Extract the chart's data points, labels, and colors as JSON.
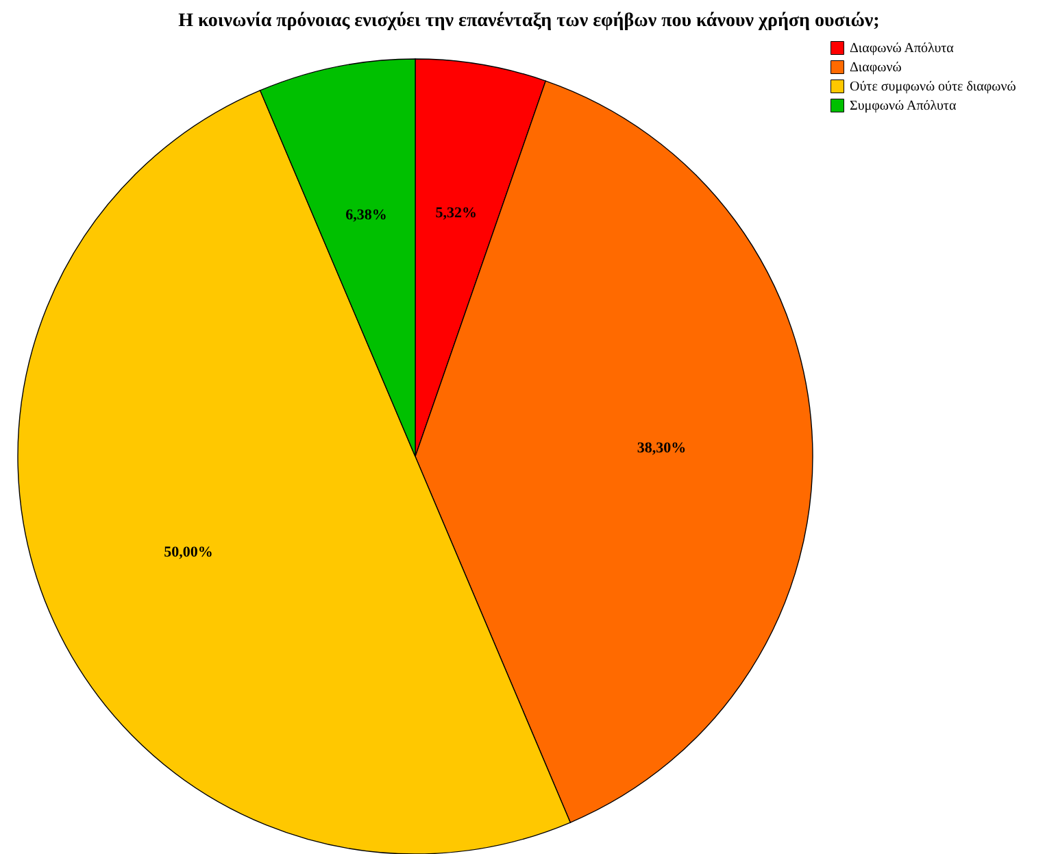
{
  "chart_data": {
    "type": "pie",
    "title": "Η κοινωνία πρόνοιας ενισχύει την επανένταξη των εφήβων που κάνουν χρήση ουσιών;",
    "categories": [
      "Διαφωνώ Απόλυτα",
      "Διαφωνώ",
      "Ούτε συμφωνώ ούτε διαφωνώ",
      "Συμφωνώ Απόλυτα"
    ],
    "values": [
      5.32,
      38.3,
      50.0,
      6.38
    ],
    "value_labels": [
      "5,32%",
      "38,30%",
      "50,00%",
      "6,38%"
    ],
    "colors": [
      "#ff0000",
      "#ff6a00",
      "#ffc800",
      "#00c000"
    ],
    "legend": "top right"
  }
}
